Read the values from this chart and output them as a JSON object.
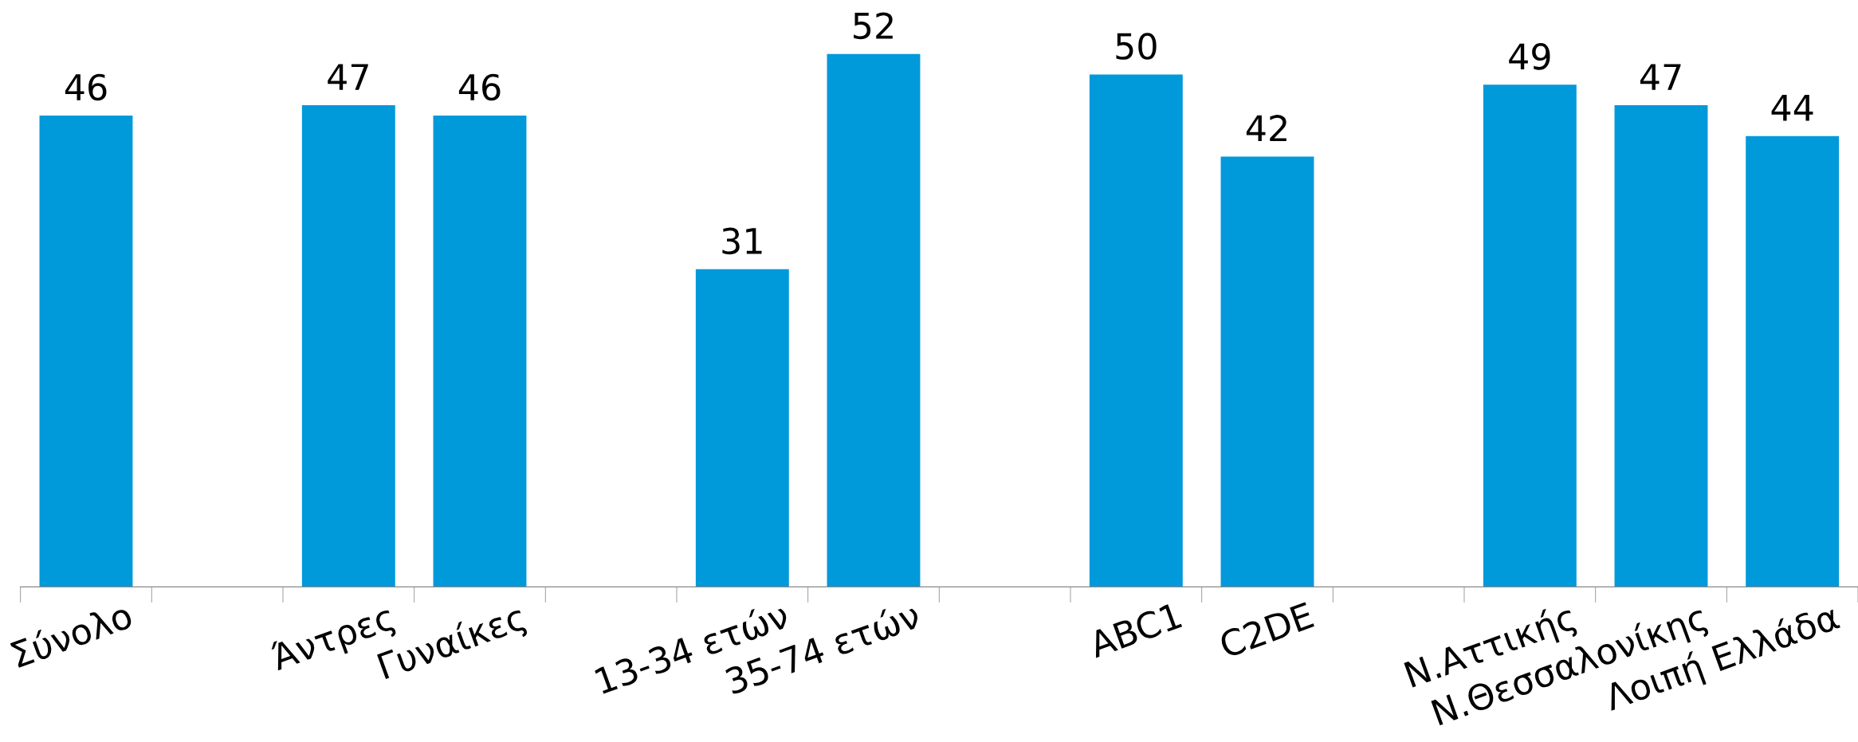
{
  "chart_data": {
    "type": "bar",
    "categories": [
      "Σύνολο",
      null,
      "Άντρες",
      "Γυναίκες",
      null,
      "13-34 ετών",
      "35-74 ετών",
      null,
      "ABC1",
      "C2DE",
      null,
      "Ν.Αττικής",
      "Ν.Θεσσαλονίκης",
      "Λοιπή Ελλάδα"
    ],
    "values": [
      46,
      null,
      47,
      46,
      null,
      31,
      52,
      null,
      50,
      42,
      null,
      49,
      47,
      44
    ],
    "color": "#0099da",
    "data_labels": true,
    "grid": false,
    "legend": false,
    "tick_labels": "x"
  }
}
